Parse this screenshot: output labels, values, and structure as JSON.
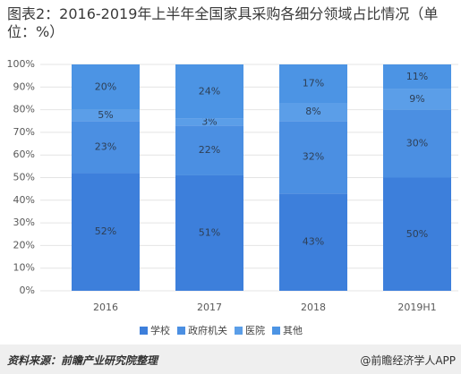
{
  "title": "图表2：2016-2019年上半年全国家具采购各细分领域占比情况（单位：%）",
  "chart_data": {
    "type": "bar",
    "stacked": true,
    "categories": [
      "2016",
      "2017",
      "2018",
      "2019H1"
    ],
    "series": [
      {
        "name": "学校",
        "values": [
          52,
          51,
          43,
          50
        ],
        "color": "#3d7fdb"
      },
      {
        "name": "政府机关",
        "values": [
          23,
          22,
          32,
          30
        ],
        "color": "#4b8fe2"
      },
      {
        "name": "医院",
        "values": [
          5,
          3,
          8,
          9
        ],
        "color": "#5b9ee8"
      },
      {
        "name": "其他",
        "values": [
          20,
          24,
          17,
          11
        ],
        "color": "#4c94e4"
      }
    ],
    "ylim": [
      0,
      100
    ],
    "yticks": [
      0,
      10,
      20,
      30,
      40,
      50,
      60,
      70,
      80,
      90,
      100
    ],
    "ytick_labels": [
      "0%",
      "10%",
      "20%",
      "30%",
      "40%",
      "50%",
      "60%",
      "70%",
      "80%",
      "90%",
      "100%"
    ],
    "value_suffix": "%",
    "grid": true,
    "legend": "bottom"
  },
  "footer": {
    "source": "资料来源：前瞻产业研究院整理",
    "brand": "@前瞻经济学人APP"
  },
  "colors": {
    "grid": "#e4e4e4",
    "data_label": "#2e3f55",
    "axis_text": "#595959"
  }
}
